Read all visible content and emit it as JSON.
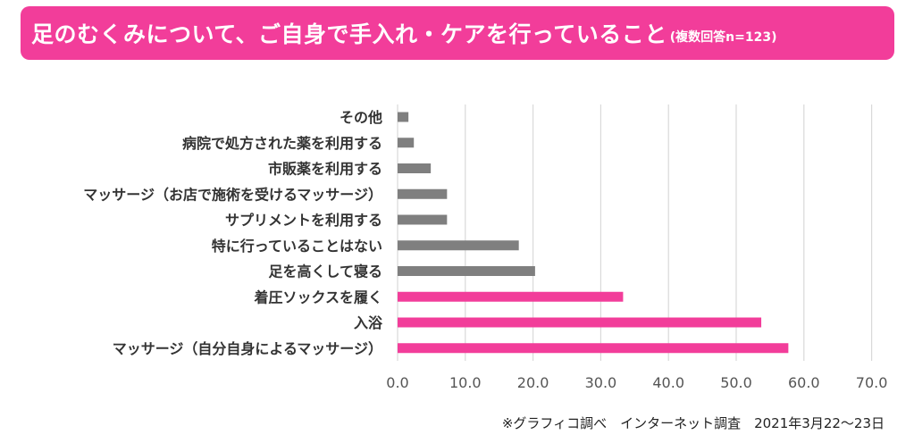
{
  "header": {
    "title": "足のむくみについて、ご自身で手入れ・ケアを行っていること",
    "subtitle": "(複数回答n=123)"
  },
  "footnote": "※グラフィコ調べ　インターネット調査　2021年3月22～23日",
  "colors": {
    "banner": "#f23d9a",
    "highlight_bar": "#f23d9a",
    "normal_bar": "#7f7f7f",
    "grid": "#d9d9d9"
  },
  "chart_data": {
    "type": "bar",
    "orientation": "horizontal",
    "title": "足のむくみについて、ご自身で手入れ・ケアを行っていること",
    "xlabel": "",
    "ylabel": "",
    "xlim": [
      0,
      70
    ],
    "xticks": [
      "0.0",
      "10.0",
      "20.0",
      "30.0",
      "40.0",
      "50.0",
      "60.0",
      "70.0"
    ],
    "grid": true,
    "categories": [
      "その他",
      "病院で処方された薬を利用する",
      "市販薬を利用する",
      "マッサージ（お店で施術を受けるマッサージ）",
      "サプリメントを利用する",
      "特に行っていることはない",
      "足を高くして寝る",
      "着圧ソックスを履く",
      "入浴",
      "マッサージ（自分自身によるマッサージ）"
    ],
    "values": [
      1.6,
      2.4,
      4.9,
      7.3,
      7.3,
      17.9,
      20.3,
      33.3,
      53.7,
      57.7
    ],
    "highlight": [
      false,
      false,
      false,
      false,
      false,
      false,
      false,
      true,
      true,
      true
    ]
  }
}
